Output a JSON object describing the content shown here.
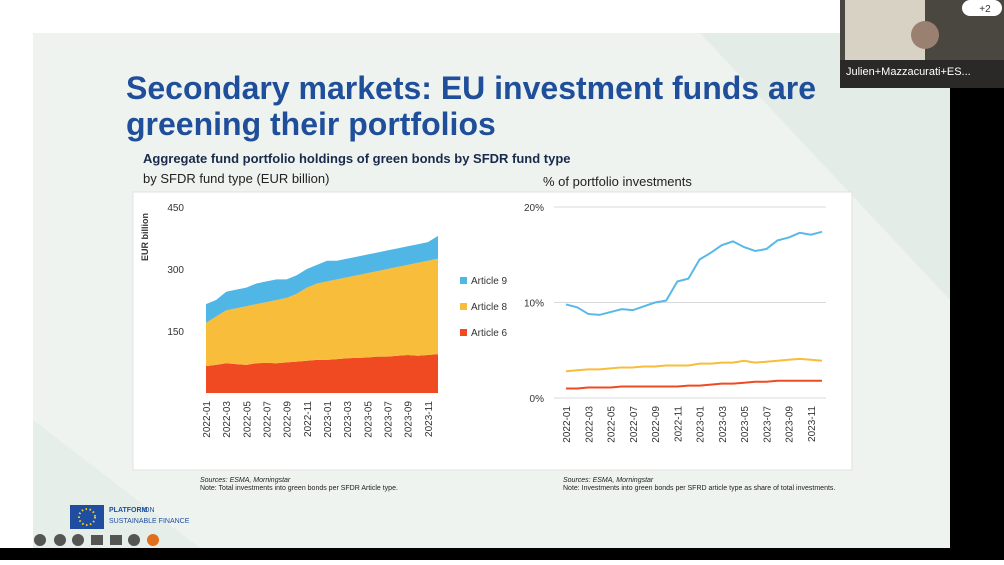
{
  "slide": {
    "title": "Secondary markets: EU investment funds are greening their portfolios",
    "logo": {
      "line1": "PLATFORM",
      "line2": "ON",
      "line3": "SUSTAINABLE FINANCE"
    }
  },
  "call": {
    "participant": "Julien+Mazzacurati+ES...",
    "badge": "+2"
  },
  "chart_data": [
    {
      "type": "area",
      "title": "Aggregate fund portfolio holdings of green bonds by SFDR fund type",
      "subtitle": "by SFDR fund type (EUR billion)",
      "y_label": "EUR billion",
      "source": "Sources: ESMA, Morningstar",
      "note": "Note: Total investments into green bonds per SFDR Article type.",
      "categories": [
        "2022-01",
        null,
        "2022-03",
        null,
        "2022-05",
        null,
        "2022-07",
        null,
        "2022-09",
        null,
        "2022-11",
        null,
        "2023-01",
        null,
        "2023-03",
        null,
        "2023-05",
        null,
        "2023-07",
        null,
        "2023-09",
        null,
        "2023-11",
        null
      ],
      "ylim": [
        0,
        450
      ],
      "yticks": [
        150,
        300,
        450
      ],
      "grid": false,
      "stacked": true,
      "legend": "right",
      "series": [
        {
          "name": "Article 6",
          "color": "#f04a22",
          "values": [
            65,
            68,
            72,
            70,
            68,
            72,
            73,
            72,
            74,
            76,
            78,
            80,
            80,
            82,
            84,
            85,
            86,
            88,
            88,
            90,
            92,
            90,
            92,
            94
          ]
        },
        {
          "name": "Article 8",
          "color": "#f7bd3b",
          "values": [
            105,
            117,
            128,
            135,
            142,
            143,
            147,
            153,
            156,
            164,
            177,
            185,
            190,
            193,
            196,
            200,
            204,
            207,
            212,
            215,
            218,
            225,
            228,
            231
          ]
        },
        {
          "name": "Article 9",
          "color": "#4fb6e6",
          "values": [
            45,
            40,
            45,
            45,
            45,
            50,
            50,
            50,
            45,
            45,
            45,
            45,
            50,
            45,
            45,
            45,
            45,
            45,
            45,
            45,
            45,
            45,
            45,
            55
          ]
        }
      ]
    },
    {
      "type": "line",
      "subtitle": "% of portfolio investments",
      "source": "Sources: ESMA, Morningstar",
      "note": "Note: Investments into green bonds per SFRD article type as share of total investments.",
      "categories": [
        "2022-01",
        null,
        "2022-03",
        null,
        "2022-05",
        null,
        "2022-07",
        null,
        "2022-09",
        null,
        "2022-11",
        null,
        "2023-01",
        null,
        "2023-03",
        null,
        "2023-05",
        null,
        "2023-07",
        null,
        "2023-09",
        null,
        "2023-11",
        null
      ],
      "ylim": [
        0,
        20
      ],
      "yticks": [
        {
          "value": 0,
          "label": "0%"
        },
        {
          "value": 10,
          "label": "10%"
        },
        {
          "value": 20,
          "label": "20%"
        }
      ],
      "grid": true,
      "series": [
        {
          "color": "#5ab8e8",
          "values": [
            9.8,
            9.5,
            8.8,
            8.7,
            9.0,
            9.3,
            9.2,
            9.6,
            10.0,
            10.2,
            12.2,
            12.5,
            14.5,
            15.2,
            16.0,
            16.4,
            15.8,
            15.4,
            15.6,
            16.5,
            16.8,
            17.3,
            17.1,
            17.4
          ]
        },
        {
          "color": "#f7bd3b",
          "values": [
            2.8,
            2.9,
            3.0,
            3.0,
            3.1,
            3.2,
            3.2,
            3.3,
            3.3,
            3.4,
            3.4,
            3.4,
            3.6,
            3.6,
            3.7,
            3.7,
            3.9,
            3.7,
            3.8,
            3.9,
            4.0,
            4.1,
            4.0,
            3.9
          ]
        },
        {
          "color": "#f04a22",
          "values": [
            1.0,
            1.0,
            1.1,
            1.1,
            1.1,
            1.2,
            1.2,
            1.2,
            1.2,
            1.2,
            1.2,
            1.3,
            1.3,
            1.4,
            1.5,
            1.5,
            1.6,
            1.7,
            1.7,
            1.8,
            1.8,
            1.8,
            1.8,
            1.8
          ]
        }
      ]
    }
  ]
}
